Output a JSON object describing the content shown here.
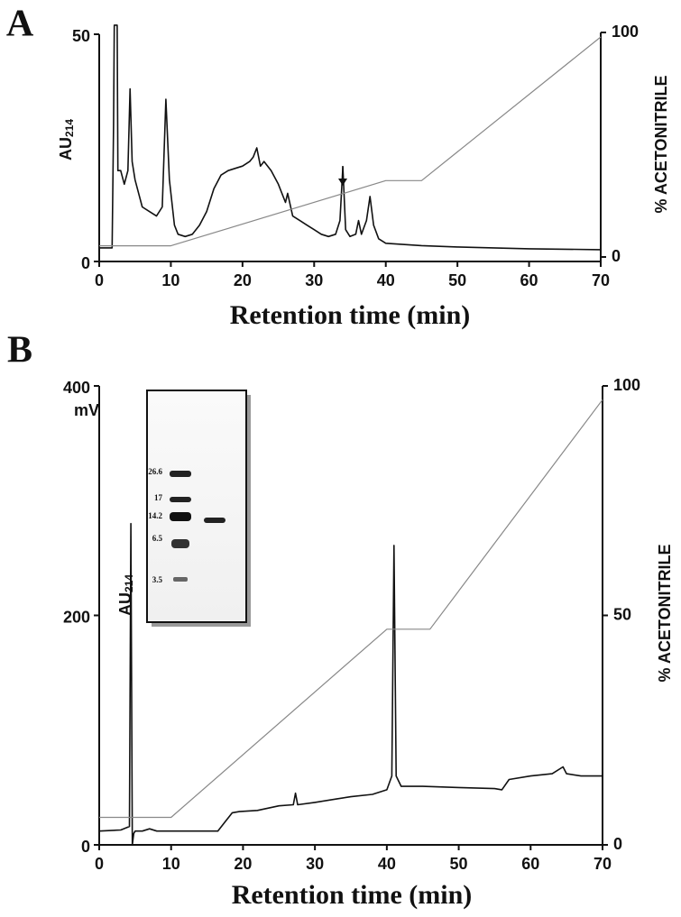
{
  "chart_data": [
    {
      "type": "line",
      "panel_label": "A",
      "xlabel": "Retention time (min)",
      "ylabel": "AU",
      "ylabel_subscript": "214",
      "y2label": "% ACETONITRILE",
      "xlim": [
        0,
        70
      ],
      "xticks": [
        0,
        10,
        20,
        30,
        40,
        50,
        60,
        70
      ],
      "ylim": [
        0,
        50
      ],
      "yticks": [
        0,
        50
      ],
      "y2lim": [
        0,
        100
      ],
      "y2ticks": [
        0,
        100
      ],
      "series": [
        {
          "color": "#111111",
          "x": [
            0,
            1.8,
            2.0,
            2.1,
            2.5,
            2.6,
            3.0,
            3.5,
            4.0,
            4.3,
            4.6,
            5.0,
            5.5,
            6,
            7,
            8,
            8.8,
            9.3,
            9.8,
            10.5,
            11,
            12,
            13,
            14,
            15,
            16,
            17,
            18,
            19,
            20,
            21,
            21.5,
            22,
            22.5,
            23,
            24,
            25,
            26,
            26.3,
            27,
            28,
            29,
            30,
            31,
            32,
            33,
            33.6,
            34,
            34.4,
            35,
            35.8,
            36.2,
            36.6,
            37.3,
            37.8,
            38.3,
            39,
            40,
            45,
            50,
            55,
            60,
            65,
            70
          ],
          "values": [
            3,
            3,
            30,
            52,
            52,
            20,
            20,
            17,
            20,
            38,
            22,
            18,
            15,
            12,
            11,
            10,
            12,
            35.7,
            18,
            8,
            6,
            5.5,
            6,
            8,
            11,
            16,
            19,
            20,
            20.5,
            21,
            22,
            23,
            25,
            21,
            22,
            20,
            17,
            13,
            15,
            10,
            9,
            8,
            7,
            6,
            5.5,
            6,
            9,
            20.8,
            7,
            5.5,
            6,
            9,
            6,
            9,
            14.3,
            8,
            5,
            4,
            3.5,
            3.2,
            3,
            2.8,
            2.7,
            2.6
          ]
        },
        {
          "color": "#888888",
          "axis": "y2",
          "x": [
            0,
            10,
            40,
            45,
            70
          ],
          "values": [
            5,
            5,
            34,
            34,
            98
          ]
        }
      ]
    },
    {
      "type": "line",
      "panel_label": "B",
      "xlabel": "Retention time (min)",
      "ylabel": "AU",
      "ylabel_subscript": "214",
      "y_unit": "mV",
      "y2label": "% ACETONITRILE",
      "xlim": [
        0,
        70
      ],
      "xticks": [
        0,
        10,
        20,
        30,
        40,
        50,
        60,
        70
      ],
      "ylim": [
        0,
        400
      ],
      "yticks": [
        0,
        200,
        400
      ],
      "y2lim": [
        0,
        100
      ],
      "y2ticks": [
        0,
        50,
        100
      ],
      "inset_labels": [
        "26.6",
        "17",
        "14.2",
        "6.5",
        "3.5"
      ],
      "series": [
        {
          "color": "#111111",
          "x": [
            0,
            3,
            4.2,
            4.4,
            4.6,
            4.8,
            5,
            6,
            7,
            8,
            10,
            12,
            15,
            16.5,
            17.5,
            18.5,
            19.5,
            22,
            25,
            27,
            27.3,
            27.6,
            30,
            33,
            35,
            38,
            40,
            40.7,
            41,
            41.3,
            42,
            45,
            50,
            55,
            56,
            57,
            60,
            63,
            64.5,
            65,
            67,
            70
          ],
          "values": [
            12,
            13,
            16,
            280,
            0,
            10,
            12,
            12,
            14,
            12,
            12,
            12,
            12,
            12,
            20,
            28,
            29,
            30,
            34,
            35,
            45,
            35,
            37,
            40,
            42,
            44,
            48,
            60,
            261,
            60,
            51,
            51,
            50,
            49,
            48,
            57,
            60,
            62,
            68,
            62,
            60,
            60
          ]
        },
        {
          "color": "#888888",
          "axis": "y2",
          "x": [
            0,
            10,
            40,
            46,
            70
          ],
          "values": [
            6,
            6,
            47,
            47,
            97
          ]
        }
      ]
    }
  ]
}
